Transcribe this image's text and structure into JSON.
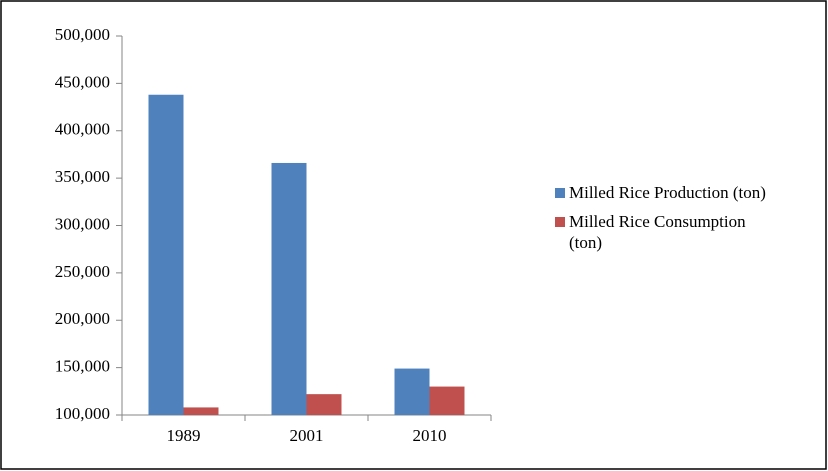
{
  "chart_data": {
    "type": "bar",
    "categories": [
      "1989",
      "2001",
      "2010"
    ],
    "series": [
      {
        "name": "Milled Rice Production (ton)",
        "color": "#4f81bd",
        "values": [
          438000,
          366000,
          149000
        ]
      },
      {
        "name": "Milled Rice Consumption (ton)",
        "color": "#c0504d",
        "values": [
          108000,
          122000,
          130000
        ]
      }
    ],
    "ylim": [
      100000,
      500000
    ],
    "yticks": [
      {
        "value": 100000,
        "label": "100,000"
      },
      {
        "value": 150000,
        "label": "150,000"
      },
      {
        "value": 200000,
        "label": "200,000"
      },
      {
        "value": 250000,
        "label": "250,000"
      },
      {
        "value": 300000,
        "label": "300,000"
      },
      {
        "value": 350000,
        "label": "350,000"
      },
      {
        "value": 400000,
        "label": "400,000"
      },
      {
        "value": 450000,
        "label": "450,000"
      },
      {
        "value": 500000,
        "label": "500,000"
      }
    ],
    "legend": "right"
  }
}
